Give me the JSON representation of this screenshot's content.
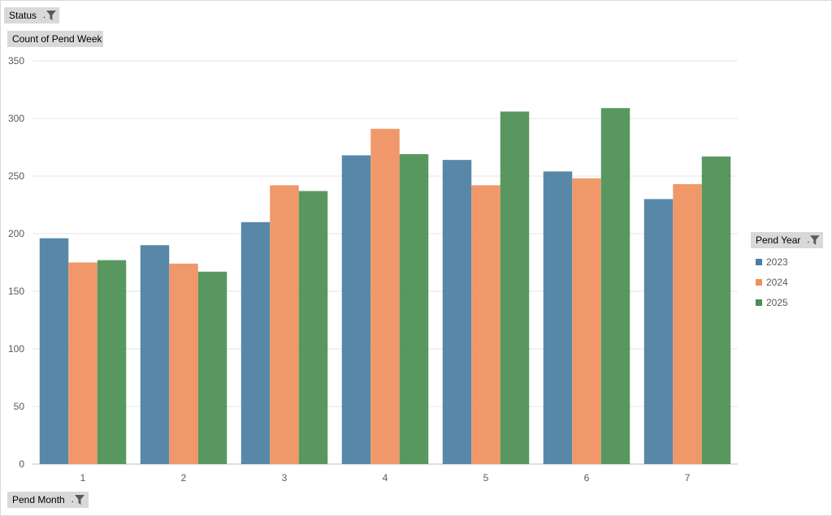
{
  "filters": {
    "status_label": "Status",
    "count_label": "Count of Pend Week",
    "month_label": "Pend Month",
    "year_label": "Pend Year",
    "dropdown_mark": "."
  },
  "chart_data": {
    "type": "bar",
    "categories": [
      "1",
      "2",
      "3",
      "4",
      "5",
      "6",
      "7"
    ],
    "series": [
      {
        "name": "2023",
        "color": "#4a7ea1",
        "values": [
          196,
          190,
          210,
          268,
          264,
          254,
          230
        ]
      },
      {
        "name": "2024",
        "color": "#f08f5d",
        "values": [
          175,
          174,
          242,
          291,
          242,
          248,
          243
        ]
      },
      {
        "name": "2025",
        "color": "#4a8f52",
        "values": [
          177,
          167,
          237,
          269,
          306,
          309,
          267
        ]
      }
    ],
    "ylim": [
      0,
      350
    ],
    "yticks": [
      0,
      50,
      100,
      150,
      200,
      250,
      300,
      350
    ],
    "grid": true,
    "legend_position": "right"
  }
}
